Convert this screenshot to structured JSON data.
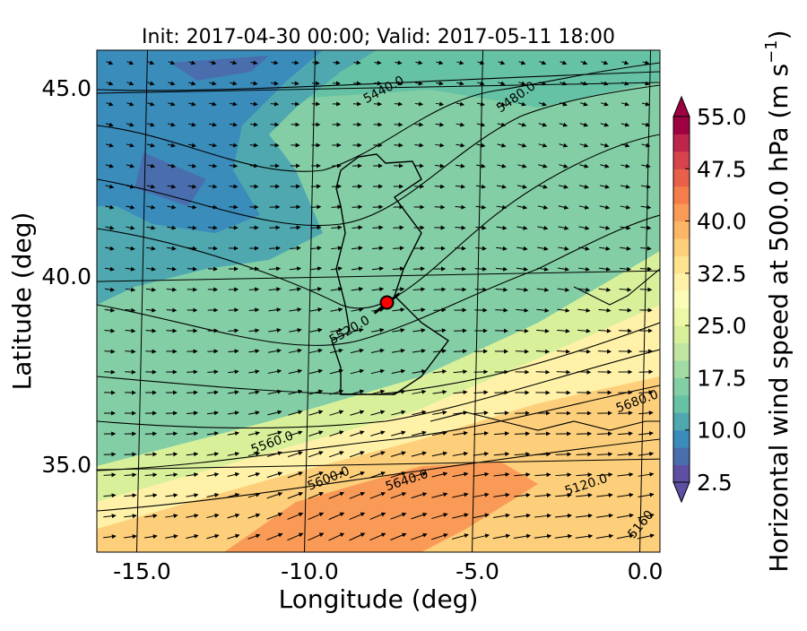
{
  "chart_data": {
    "type": "map",
    "title": "Init: 2017-04-30 00:00; Valid: 2017-05-11 18:00",
    "xlabel": "Longitude (deg)",
    "ylabel": "Latitude (deg)",
    "xlim": [
      -16.35,
      0.44
    ],
    "ylim": [
      32.67,
      46.0
    ],
    "xticks": [
      {
        "value": -15,
        "label": "-15.0"
      },
      {
        "value": -10,
        "label": "-10.0"
      },
      {
        "value": -5,
        "label": "-5.0"
      },
      {
        "value": 0,
        "label": "0.0"
      }
    ],
    "yticks": [
      {
        "value": 35,
        "label": "35.0"
      },
      {
        "value": 40,
        "label": "40.0"
      },
      {
        "value": 45,
        "label": "45.0"
      }
    ],
    "contour_labels": [
      "5440.0",
      "5480.0",
      "5520.0",
      "5560.0",
      "5600.0",
      "5640.0",
      "5680.0",
      "5120.0",
      "5160"
    ],
    "marker": {
      "lon": -7.7,
      "lat": 39.3,
      "color": "#ff0000"
    },
    "colorbar": {
      "label": [
        "Horizontal wind speed at 500.0 hPa (m s",
        "−1",
        ")"
      ],
      "clim": [
        2.5,
        55
      ],
      "ticks": [
        2.5,
        {
          "value": 10,
          "label": "10.0"
        },
        17.5,
        {
          "value": 25,
          "label": "25.0"
        },
        32.5,
        {
          "value": 40,
          "label": "40.0"
        },
        47.5,
        {
          "value": 55,
          "label": "55.0"
        }
      ],
      "colors": [
        "#5e4fa2",
        "#4a6ead",
        "#3a8cbb",
        "#4fa8b0",
        "#66c2a5",
        "#83cea5",
        "#a2daa4",
        "#bfe5a0",
        "#d9f09b",
        "#ecf8a5",
        "#fafdb7",
        "#fff2a8",
        "#fee391",
        "#fdcf7b",
        "#fdb567",
        "#fa9a57",
        "#f57d4b",
        "#e8604a",
        "#d6434d",
        "#be254b",
        "#9e0142"
      ]
    }
  }
}
